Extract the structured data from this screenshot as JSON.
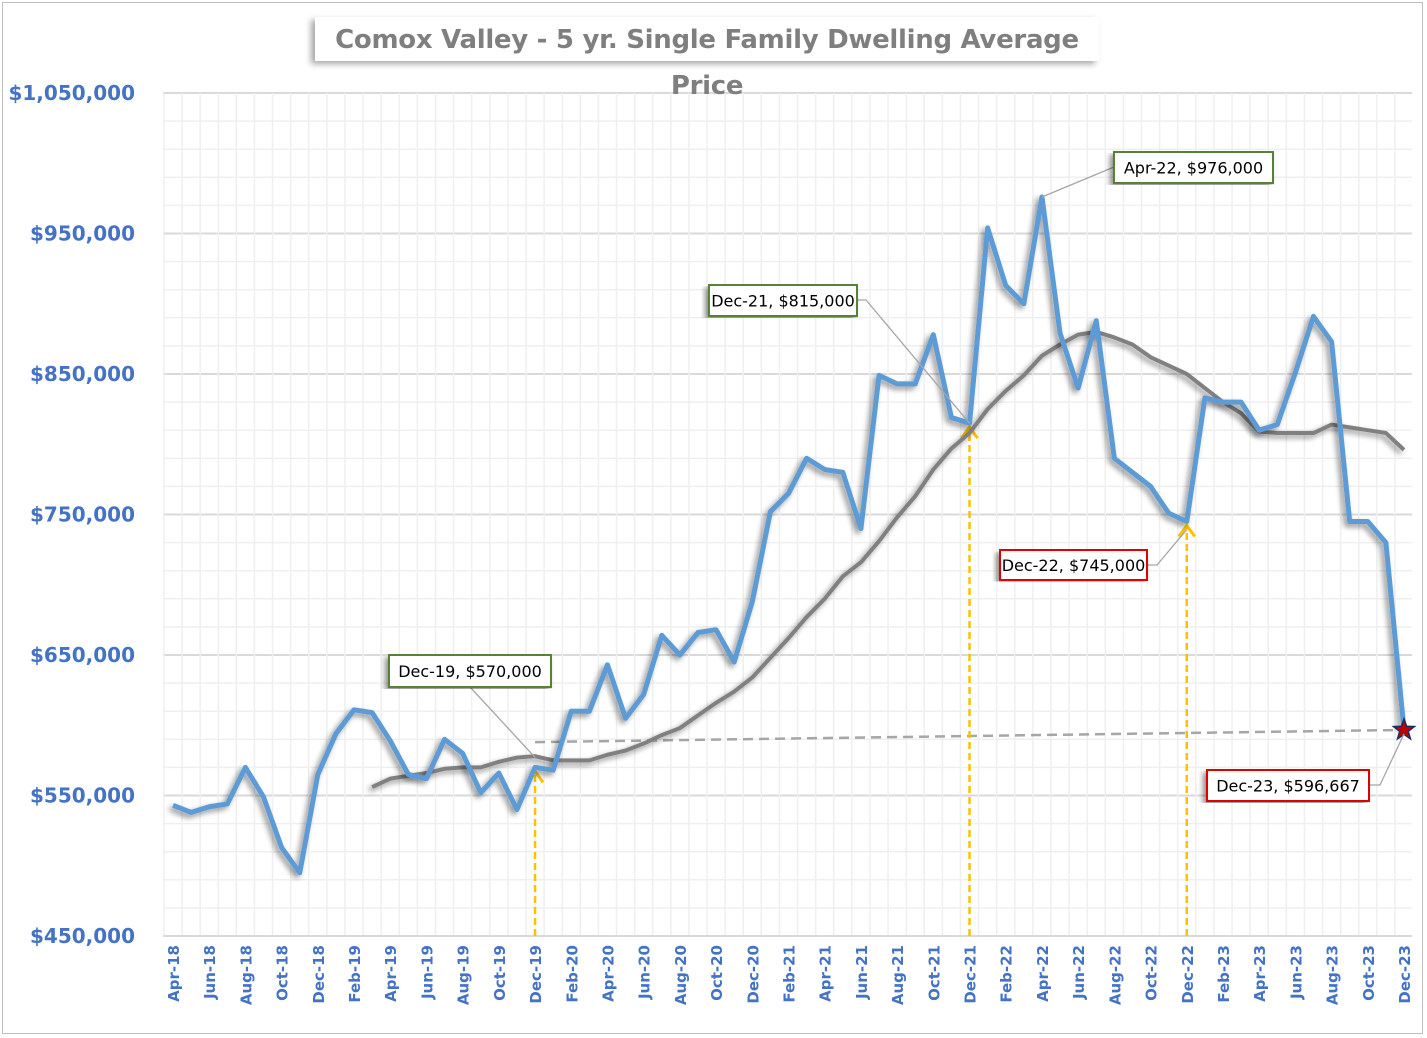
{
  "chart_data": {
    "type": "line",
    "title": "Comox Valley - 5 yr. Single Family Dwelling Average Price",
    "xlabel": "",
    "ylabel": "",
    "ylim": [
      450000,
      1050000
    ],
    "y_ticks": [
      "$450,000",
      "$550,000",
      "$650,000",
      "$750,000",
      "$850,000",
      "$950,000",
      "$1,050,000"
    ],
    "y_tick_values": [
      450000,
      550000,
      650000,
      750000,
      850000,
      950000,
      1050000
    ],
    "grid": true,
    "x": [
      "Apr-18",
      "May-18",
      "Jun-18",
      "Jul-18",
      "Aug-18",
      "Sep-18",
      "Oct-18",
      "Nov-18",
      "Dec-18",
      "Jan-19",
      "Feb-19",
      "Mar-19",
      "Apr-19",
      "May-19",
      "Jun-19",
      "Jul-19",
      "Aug-19",
      "Sep-19",
      "Oct-19",
      "Nov-19",
      "Dec-19",
      "Jan-20",
      "Feb-20",
      "Mar-20",
      "Apr-20",
      "May-20",
      "Jun-20",
      "Jul-20",
      "Aug-20",
      "Sep-20",
      "Oct-20",
      "Nov-20",
      "Dec-20",
      "Jan-21",
      "Feb-21",
      "Mar-21",
      "Apr-21",
      "May-21",
      "Jun-21",
      "Jul-21",
      "Aug-21",
      "Sep-21",
      "Oct-21",
      "Nov-21",
      "Dec-21",
      "Jan-22",
      "Feb-22",
      "Mar-22",
      "Apr-22",
      "May-22",
      "Jun-22",
      "Jul-22",
      "Aug-22",
      "Sep-22",
      "Oct-22",
      "Nov-22",
      "Dec-22",
      "Jan-23",
      "Feb-23",
      "Mar-23",
      "Apr-23",
      "May-23",
      "Jun-23",
      "Jul-23",
      "Aug-23",
      "Sep-23",
      "Oct-23",
      "Nov-23",
      "Dec-23"
    ],
    "x_tick_labels": [
      "Apr-18",
      "Jun-18",
      "Aug-18",
      "Oct-18",
      "Dec-18",
      "Feb-19",
      "Apr-19",
      "Jun-19",
      "Aug-19",
      "Oct-19",
      "Dec-19",
      "Feb-20",
      "Apr-20",
      "Jun-20",
      "Aug-20",
      "Oct-20",
      "Dec-20",
      "Feb-21",
      "Apr-21",
      "Jun-21",
      "Aug-21",
      "Oct-21",
      "Dec-21",
      "Feb-22",
      "Apr-22",
      "Jun-22",
      "Aug-22",
      "Oct-22",
      "Dec-22",
      "Feb-23",
      "Apr-23",
      "Jun-23",
      "Aug-23",
      "Oct-23",
      "Dec-23"
    ],
    "series": [
      {
        "color": "#5b9bd5",
        "values": [
          543000,
          538000,
          542000,
          544000,
          570000,
          549000,
          513000,
          495000,
          565000,
          594000,
          611000,
          609000,
          589000,
          565000,
          562000,
          590000,
          580000,
          552000,
          566000,
          540000,
          570000,
          568000,
          610000,
          610000,
          643000,
          605000,
          622000,
          664000,
          650000,
          666000,
          668000,
          645000,
          688000,
          752000,
          765000,
          790000,
          782000,
          780000,
          740000,
          849000,
          843000,
          843000,
          878000,
          819000,
          815000,
          954000,
          913000,
          900000,
          976000,
          879000,
          840000,
          888000,
          790000,
          780000,
          770000,
          751000,
          745000,
          833000,
          830000,
          830000,
          810000,
          814000,
          851000,
          891000,
          873000,
          745000,
          745000,
          730000,
          596667
        ]
      },
      {
        "color": "#808080",
        "values": [
          null,
          null,
          null,
          null,
          null,
          null,
          null,
          null,
          null,
          null,
          null,
          556000,
          562000,
          564000,
          566000,
          569000,
          570000,
          570000,
          574000,
          577000,
          578000,
          575000,
          575000,
          575000,
          579000,
          582000,
          587000,
          593000,
          598000,
          607000,
          616000,
          624000,
          634000,
          648000,
          662000,
          677000,
          690000,
          706000,
          716000,
          731000,
          748000,
          763000,
          782000,
          797000,
          808000,
          825000,
          838000,
          849000,
          863000,
          871000,
          878000,
          880000,
          876000,
          871000,
          862000,
          856000,
          850000,
          840000,
          830000,
          822000,
          809000,
          808000,
          808000,
          808000,
          814000,
          812000,
          810000,
          808000,
          796000
        ]
      }
    ],
    "reference_line": {
      "from": "Dec-19",
      "to": "Dec-23",
      "values": [
        588000,
        596667
      ],
      "color": "#a6a6a6",
      "style": "dashed"
    },
    "arrows": {
      "at": [
        "Dec-19",
        "Dec-21",
        "Dec-22"
      ],
      "color": "#ffc000"
    },
    "end_marker": {
      "at": "Dec-23",
      "shape": "star",
      "color": "#c00000"
    },
    "annotations": [
      {
        "text": "Dec-19, $570,000",
        "at": "Dec-19",
        "border": "#548235"
      },
      {
        "text": "Dec-21, $815,000",
        "at": "Dec-21",
        "border": "#548235"
      },
      {
        "text": "Apr-22, $976,000",
        "at": "Apr-22",
        "border": "#548235"
      },
      {
        "text": "Dec-22, $745,000",
        "at": "Dec-22",
        "border": "#e00000"
      },
      {
        "text": "Dec-23, $596,667",
        "at": "Dec-23",
        "border": "#e00000"
      }
    ]
  }
}
